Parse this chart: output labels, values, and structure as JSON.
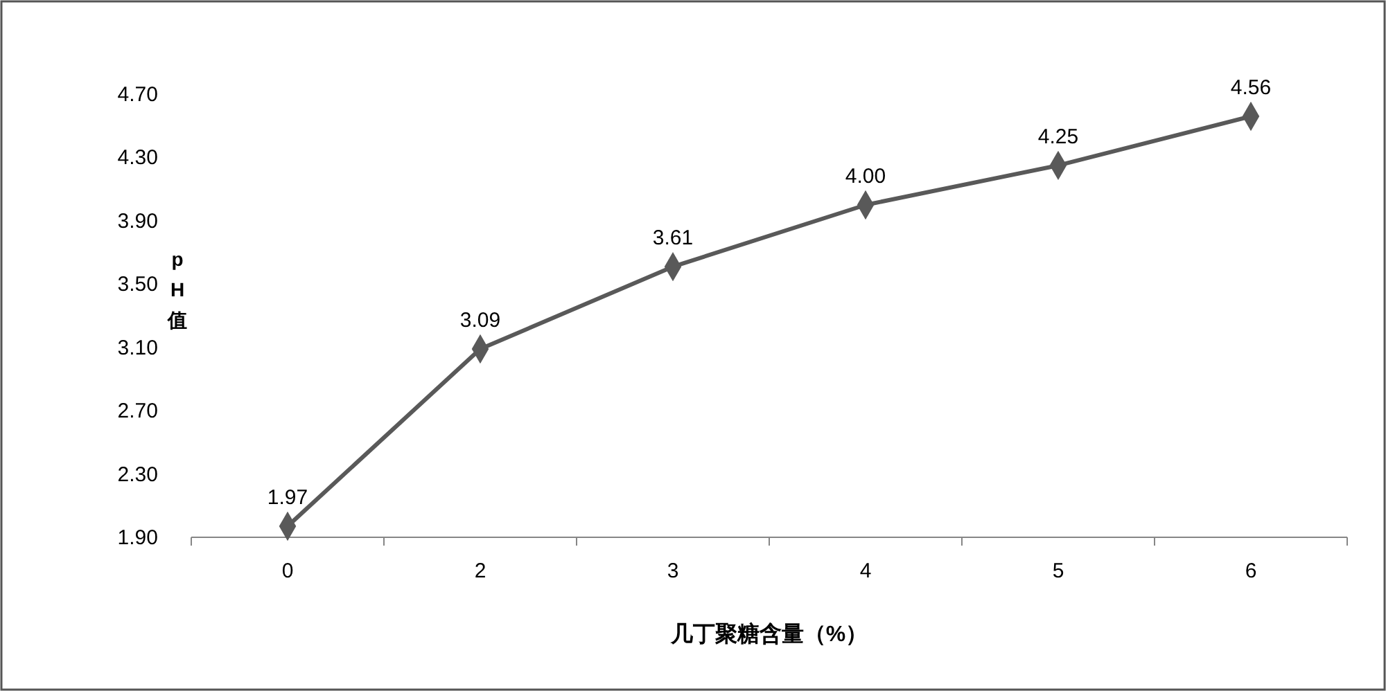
{
  "chart_data": {
    "type": "line",
    "xlabel": "几丁聚糖含量（%）",
    "ylabel": "pH值",
    "categories": [
      "0",
      "2",
      "3",
      "4",
      "5",
      "6"
    ],
    "series": [
      {
        "color": "#595959",
        "values": [
          1.97,
          3.09,
          3.61,
          4.0,
          4.25,
          4.56
        ],
        "value_labels": [
          "1.97",
          "3.09",
          "3.61",
          "4.00",
          "4.25",
          "4.56"
        ]
      }
    ],
    "ylim": [
      1.9,
      4.7
    ],
    "yticks": [
      {
        "value": 1.9,
        "label": "1.90"
      },
      {
        "value": 2.3,
        "label": "2.30"
      },
      {
        "value": 2.7,
        "label": "2.70"
      },
      {
        "value": 3.1,
        "label": "3.10"
      },
      {
        "value": 3.5,
        "label": "3.50"
      },
      {
        "value": 3.9,
        "label": "3.90"
      },
      {
        "value": 4.3,
        "label": "4.30"
      },
      {
        "value": 4.7,
        "label": "4.70"
      }
    ],
    "marker": "diamond",
    "grid": false
  }
}
